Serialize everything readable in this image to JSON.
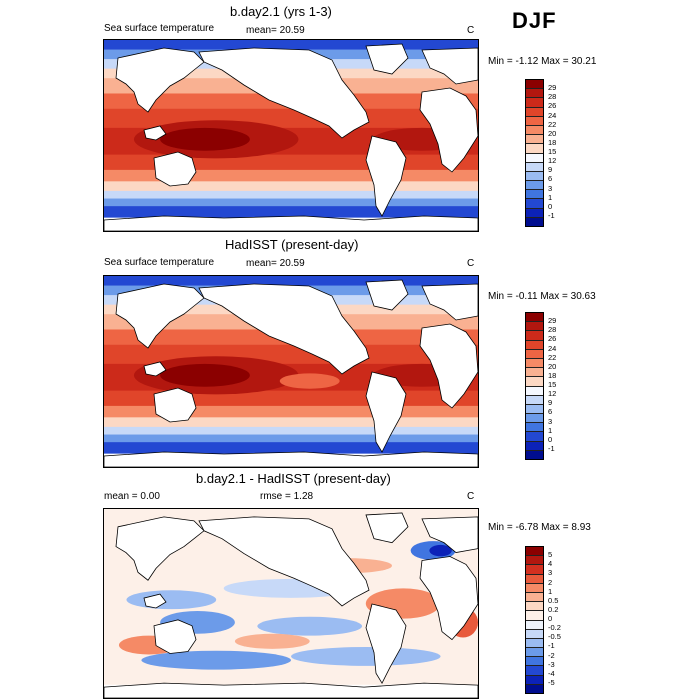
{
  "season": "DJF",
  "panels": [
    {
      "title": "b.day2.1 (yrs 1-3)",
      "left_label": "Sea surface temperature",
      "center_label": "mean=  20.59",
      "units": "C",
      "minmax": "Min =  -1.12 Max =  30.21",
      "levels": [
        "29",
        "28",
        "26",
        "24",
        "22",
        "20",
        "18",
        "15",
        "12",
        "9",
        "6",
        "3",
        "1",
        "0",
        "-1"
      ],
      "colors": [
        "#8b0000",
        "#b2170f",
        "#cc2a1a",
        "#e0452a",
        "#ee6544",
        "#f58a66",
        "#f9b192",
        "#fcd8c4",
        "#f5f8ff",
        "#c7d9f8",
        "#9bbcf2",
        "#6c9be9",
        "#4075e0",
        "#2348d2",
        "#0c22b8",
        "#000d8f"
      ]
    },
    {
      "title": "HadISST (present-day)",
      "left_label": "Sea surface temperature",
      "center_label": "mean=  20.59",
      "units": "C",
      "minmax": "Min =  -0.11 Max =  30.63",
      "levels": [
        "29",
        "28",
        "26",
        "24",
        "22",
        "20",
        "18",
        "15",
        "12",
        "9",
        "6",
        "3",
        "1",
        "0",
        "-1"
      ],
      "colors": [
        "#8b0000",
        "#b2170f",
        "#cc2a1a",
        "#e0452a",
        "#ee6544",
        "#f58a66",
        "#f9b192",
        "#fcd8c4",
        "#f5f8ff",
        "#c7d9f8",
        "#9bbcf2",
        "#6c9be9",
        "#4075e0",
        "#2348d2",
        "#0c22b8",
        "#000d8f"
      ]
    },
    {
      "title": "b.day2.1 - HadISST (present-day)",
      "left_label": "mean =   0.00",
      "center_label": "rmse =   1.28",
      "units": "C",
      "minmax": "Min =  -6.78 Max =   8.93",
      "levels": [
        "5",
        "4",
        "3",
        "2",
        "1",
        "0.5",
        "0.2",
        "0",
        "-0.2",
        "-0.5",
        "-1",
        "-2",
        "-3",
        "-4",
        "-5"
      ],
      "colors": [
        "#8b0000",
        "#b2170f",
        "#d33020",
        "#e85a3c",
        "#f58a66",
        "#f9b192",
        "#fcd8c4",
        "#fdf0e8",
        "#eef3fb",
        "#c7d9f8",
        "#9bbcf2",
        "#6c9be9",
        "#4075e0",
        "#2348d2",
        "#0c22b8",
        "#000d8f"
      ]
    }
  ]
}
